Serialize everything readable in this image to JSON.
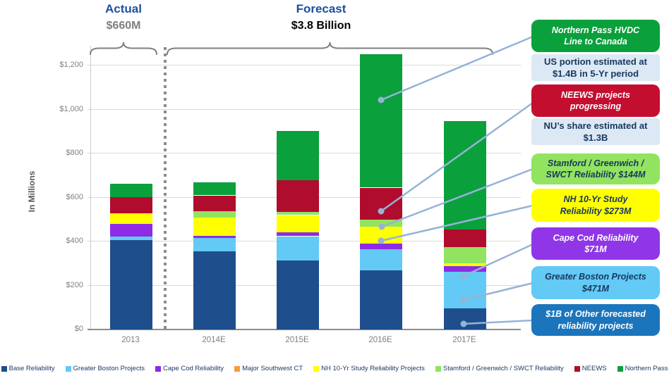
{
  "header": {
    "actual_label": "Actual",
    "actual_value": "$660M",
    "forecast_label": "Forecast",
    "forecast_value": "$3.8 Billion"
  },
  "chart_data": {
    "type": "bar",
    "subtype": "stacked",
    "categories": [
      "2013",
      "2014E",
      "2015E",
      "2016E",
      "2017E"
    ],
    "series": [
      {
        "name": "Base Reliability",
        "color": "#1F4E8C",
        "values": [
          405,
          355,
          315,
          270,
          95
        ]
      },
      {
        "name": "Greater Boston Projects",
        "color": "#63C9F5",
        "values": [
          16,
          61,
          109,
          95,
          166
        ]
      },
      {
        "name": "Cape Cod Reliability",
        "color": "#8E2BE5",
        "values": [
          58,
          10,
          19,
          25,
          26
        ]
      },
      {
        "name": "Major Southwest CT",
        "color": "#F79B3E",
        "values": [
          0,
          0,
          0,
          0,
          0
        ]
      },
      {
        "name": "NH 10-Yr Study Reliability Projects",
        "color": "#FFFF00",
        "values": [
          49,
          84,
          77,
          78,
          13
        ]
      },
      {
        "name": "Stamford / Greenwich / SWCT Reliability",
        "color": "#92E360",
        "values": [
          0,
          29,
          13,
          32,
          74
        ]
      },
      {
        "name": "NEEWS",
        "color": "#B00C2D",
        "values": [
          72,
          71,
          145,
          145,
          81
        ]
      },
      {
        "name": "Northern Pass",
        "color": "#0AA03C",
        "values": [
          61,
          58,
          225,
          605,
          493
        ]
      }
    ],
    "totals": [
      661,
      668,
      903,
      1250,
      948
    ],
    "title": "",
    "xlabel": "",
    "ylabel": "In Millions",
    "ylim": [
      0,
      1290
    ],
    "yticks": [
      "$0",
      "$200",
      "$400",
      "$600",
      "$800",
      "$1,000",
      "$1,200"
    ],
    "ytick_values": [
      0,
      200,
      400,
      600,
      800,
      1000,
      1200
    ],
    "grid": true,
    "legend_position": "bottom"
  },
  "callouts": [
    {
      "type": "primary",
      "bg": "#0AA03C",
      "fg": "#FFFFFF",
      "lines": [
        "Northern Pass HVDC",
        "Line to Canada"
      ]
    },
    {
      "type": "note",
      "bg": "#DCE9F5",
      "fg": "#17375E",
      "lines": [
        "US portion estimated at",
        "$1.4B in 5-Yr period"
      ]
    },
    {
      "type": "primary",
      "bg": "#C30E2F",
      "fg": "#FFFFFF",
      "lines": [
        "NEEWS projects",
        "progressing"
      ]
    },
    {
      "type": "note",
      "bg": "#DCE9F5",
      "fg": "#17375E",
      "lines": [
        "NU’s share estimated at",
        "$1.3B"
      ]
    },
    {
      "type": "primary",
      "bg": "#92E360",
      "fg": "#17375E",
      "lines": [
        "Stamford / Greenwich /",
        "SWCT Reliability $144M"
      ]
    },
    {
      "type": "primary",
      "bg": "#FFFF00",
      "fg": "#17375E",
      "lines": [
        "NH 10-Yr Study",
        "Reliability $273M"
      ]
    },
    {
      "type": "primary",
      "bg": "#9036E8",
      "fg": "#FFFFFF",
      "lines": [
        "Cape Cod Reliability",
        "$71M"
      ]
    },
    {
      "type": "primary",
      "bg": "#63C9F5",
      "fg": "#17375E",
      "lines": [
        "Greater Boston Projects",
        "$471M"
      ]
    },
    {
      "type": "primary",
      "bg": "#1B75BC",
      "fg": "#FFFFFF",
      "lines": [
        "$1B of Other forecasted",
        "reliability projects"
      ]
    }
  ],
  "colors": {
    "header_blue": "#1D4F9E",
    "value_gray": "#7F7F7F",
    "connector": "#95B3D7",
    "brace": "#7F7F7F",
    "gridline": "#D9D9D9",
    "axis": "#8C8C8C",
    "tick_text": "#808080",
    "legend_text": "#1F3864"
  }
}
